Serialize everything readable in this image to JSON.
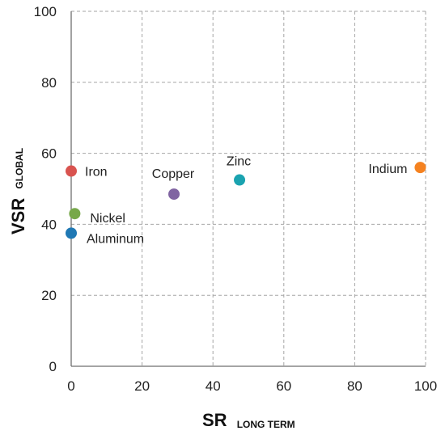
{
  "chart_data": {
    "type": "scatter",
    "title": "",
    "xlabel": {
      "main": "SR",
      "sub": "LONG TERM"
    },
    "ylabel": {
      "main": "VSR",
      "sub": "GLOBAL"
    },
    "xlim": [
      0,
      100
    ],
    "ylim": [
      0,
      100
    ],
    "xticks": [
      0,
      20,
      40,
      60,
      80,
      100
    ],
    "yticks": [
      0,
      20,
      40,
      60,
      80,
      100
    ],
    "grid": true,
    "legend": "none",
    "points": [
      {
        "label": "Iron",
        "x": 0,
        "y": 55,
        "color": "#d9534f"
      },
      {
        "label": "Nickel",
        "x": 1,
        "y": 43,
        "color": "#77a84a"
      },
      {
        "label": "Aluminum",
        "x": 0,
        "y": 37.5,
        "color": "#1f78b4"
      },
      {
        "label": "Copper",
        "x": 29,
        "y": 48.5,
        "color": "#8064a2"
      },
      {
        "label": "Zinc",
        "x": 47.5,
        "y": 52.5,
        "color": "#1aa3b0"
      },
      {
        "label": "Indium",
        "x": 98.5,
        "y": 56,
        "color": "#f58220"
      }
    ]
  }
}
